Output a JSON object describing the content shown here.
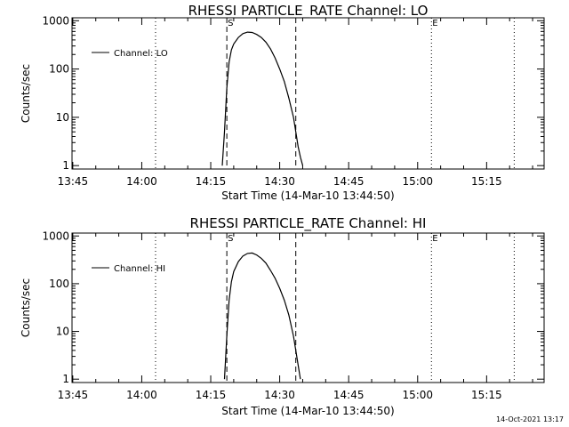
{
  "colors": {
    "background": "#ffffff",
    "foreground": "#000000"
  },
  "chart_data": [
    {
      "type": "line",
      "title": "RHESSI PARTICLE_RATE Channel: LO",
      "xlabel": "Start Time (14-Mar-10 13:44:50)",
      "ylabel": "Counts/sec",
      "y_scale": "log",
      "x_tick_labels": [
        "13:45",
        "14:00",
        "14:15",
        "14:30",
        "14:45",
        "15:00",
        "15:15"
      ],
      "y_tick_labels": [
        "1",
        "10",
        "100",
        "1000"
      ],
      "xlim": [
        "13:44:50",
        "15:27:30"
      ],
      "ylim": [
        0.85,
        1150
      ],
      "grid": false,
      "legend_position": "top-left",
      "series": [
        {
          "name": "Channel: LO",
          "x": [
            "14:17:30",
            "14:18:00",
            "14:18:30",
            "14:19:00",
            "14:19:30",
            "14:20:00",
            "14:21:00",
            "14:22:00",
            "14:23:00",
            "14:24:00",
            "14:25:00",
            "14:26:00",
            "14:27:00",
            "14:28:00",
            "14:29:00",
            "14:30:00",
            "14:31:00",
            "14:32:00",
            "14:33:00",
            "14:33:30",
            "14:34:00",
            "14:34:30",
            "14:35:00"
          ],
          "y": [
            1,
            5,
            40,
            140,
            250,
            330,
            450,
            540,
            580,
            570,
            520,
            450,
            360,
            260,
            170,
            100,
            55,
            25,
            10,
            5,
            2.5,
            1.5,
            1
          ]
        }
      ],
      "vertical_lines": [
        {
          "time": "14:03",
          "style": "dotted"
        },
        {
          "time": "14:18:30",
          "style": "dashed"
        },
        {
          "time": "14:33:30",
          "style": "dashed"
        },
        {
          "time": "15:03",
          "style": "dotted"
        },
        {
          "time": "15:21",
          "style": "dotted"
        }
      ],
      "markers": [
        {
          "label": "S",
          "time": "14:18:30"
        },
        {
          "label": "E",
          "time": "15:03"
        }
      ]
    },
    {
      "type": "line",
      "title": "RHESSI PARTICLE_RATE Channel: HI",
      "xlabel": "Start Time (14-Mar-10 13:44:50)",
      "ylabel": "Counts/sec",
      "y_scale": "log",
      "x_tick_labels": [
        "13:45",
        "14:00",
        "14:15",
        "14:30",
        "14:45",
        "15:00",
        "15:15"
      ],
      "y_tick_labels": [
        "1",
        "10",
        "100",
        "1000"
      ],
      "xlim": [
        "13:44:50",
        "15:27:30"
      ],
      "ylim": [
        0.85,
        1150
      ],
      "grid": false,
      "legend_position": "top-left",
      "series": [
        {
          "name": "Channel: HI",
          "x": [
            "14:18:00",
            "14:18:30",
            "14:19:00",
            "14:19:30",
            "14:20:00",
            "14:21:00",
            "14:22:00",
            "14:23:00",
            "14:24:00",
            "14:25:00",
            "14:26:00",
            "14:27:00",
            "14:28:00",
            "14:29:00",
            "14:30:00",
            "14:31:00",
            "14:32:00",
            "14:33:00",
            "14:33:30",
            "14:34:00",
            "14:34:30"
          ],
          "y": [
            1,
            8,
            45,
            110,
            180,
            290,
            380,
            430,
            440,
            400,
            340,
            270,
            190,
            130,
            80,
            45,
            22,
            8,
            4,
            2,
            1
          ]
        }
      ],
      "vertical_lines": [
        {
          "time": "14:03",
          "style": "dotted"
        },
        {
          "time": "14:18:30",
          "style": "dashed"
        },
        {
          "time": "14:33:30",
          "style": "dashed"
        },
        {
          "time": "15:03",
          "style": "dotted"
        },
        {
          "time": "15:21",
          "style": "dotted"
        }
      ],
      "markers": [
        {
          "label": "S",
          "time": "14:18:30"
        },
        {
          "label": "E",
          "time": "15:03"
        }
      ]
    }
  ],
  "footer": {
    "timestamp": "14-Oct-2021 13:17"
  }
}
